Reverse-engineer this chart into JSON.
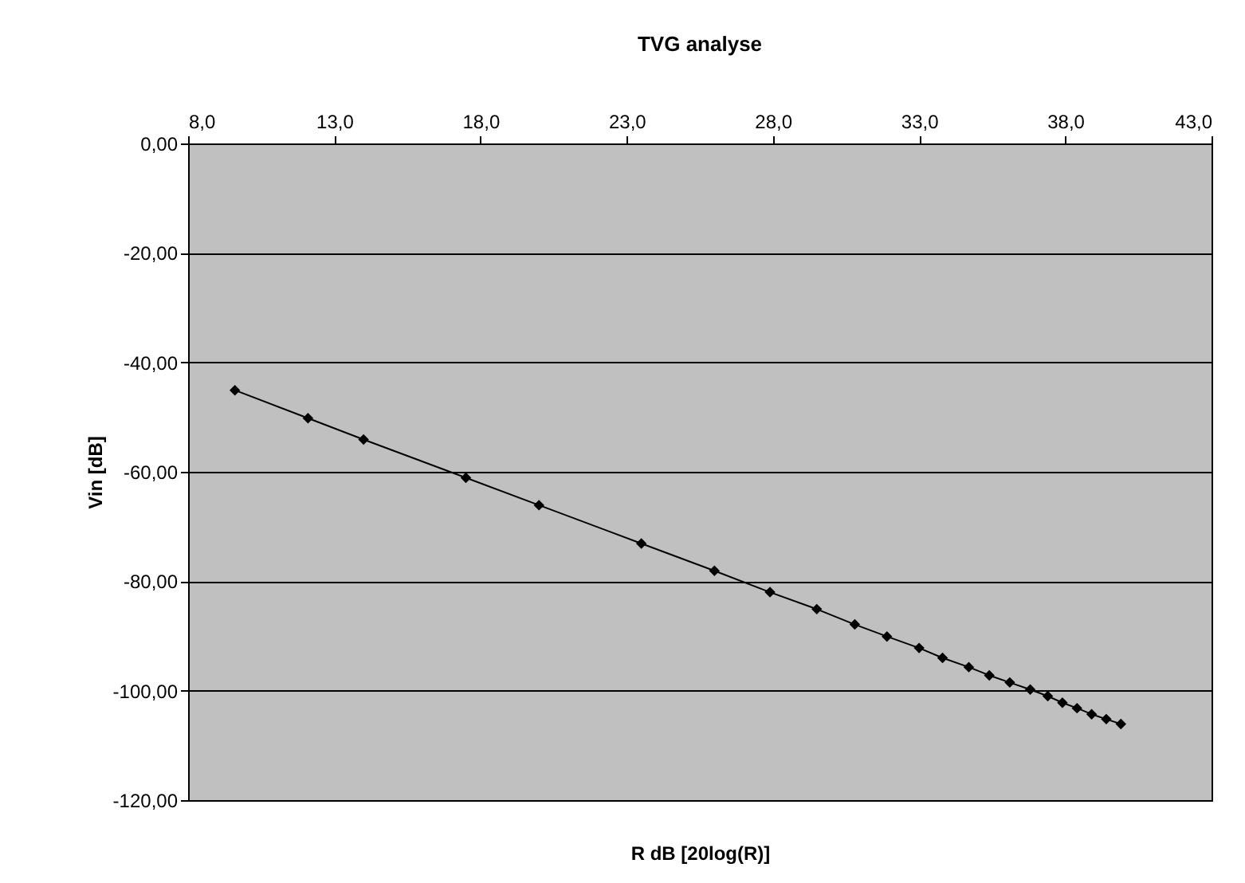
{
  "chart_data": {
    "type": "line",
    "title": "TVG analyse",
    "xlabel": "R dB [20log(R)]",
    "ylabel": "Vin [dB]",
    "x": [
      9.6,
      12.1,
      14.0,
      17.5,
      20.0,
      23.5,
      26.0,
      27.9,
      29.5,
      30.8,
      31.9,
      33.0,
      33.8,
      34.7,
      35.4,
      36.1,
      36.8,
      37.4,
      37.9,
      38.4,
      38.9,
      39.4,
      39.9
    ],
    "series": [
      {
        "color": "#000000",
        "values": [
          -45.1,
          -50.2,
          -54.1,
          -61.1,
          -66.1,
          -73.1,
          -78.1,
          -82.0,
          -85.1,
          -87.9,
          -90.1,
          -92.2,
          -94.0,
          -95.7,
          -97.2,
          -98.5,
          -99.8,
          -101.0,
          -102.2,
          -103.2,
          -104.3,
          -105.2,
          -106.1
        ]
      }
    ],
    "xlim": [
      8,
      43
    ],
    "xticks": [
      {
        "value": 8,
        "label": "8,0"
      },
      {
        "value": 13,
        "label": "13,0"
      },
      {
        "value": 18,
        "label": "18,0"
      },
      {
        "value": 23,
        "label": "23,0"
      },
      {
        "value": 28,
        "label": "28,0"
      },
      {
        "value": 33,
        "label": "33,0"
      },
      {
        "value": 38,
        "label": "38,0"
      },
      {
        "value": 43,
        "label": "43,0"
      }
    ],
    "ylim": [
      -120,
      0
    ],
    "yticks": [
      {
        "value": -120,
        "label": "-120,00"
      },
      {
        "value": -100,
        "label": "-100,00"
      },
      {
        "value": -80,
        "label": "-80,00"
      },
      {
        "value": -60,
        "label": "-60,00"
      },
      {
        "value": -40,
        "label": "-40,00"
      },
      {
        "value": -20,
        "label": "-20,00"
      },
      {
        "value": 0,
        "label": "0,00"
      }
    ],
    "grid": "y",
    "marker": "diamond",
    "line_style": "solid"
  }
}
